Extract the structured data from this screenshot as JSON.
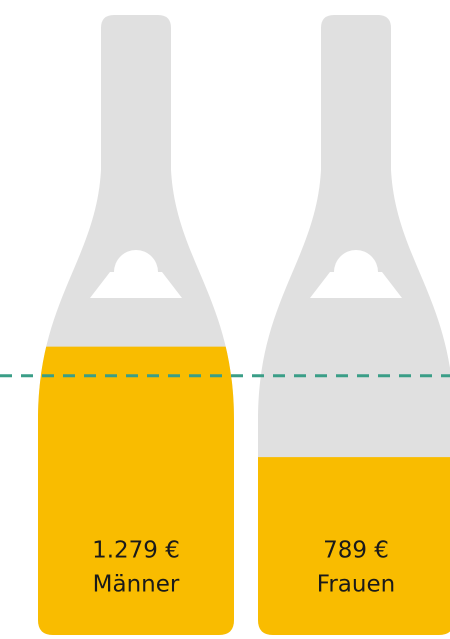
{
  "chart_data": {
    "type": "bottle",
    "categories": [
      "Männer",
      "Frauen"
    ],
    "values": [
      1279,
      789
    ],
    "value_labels": [
      "1.279 €",
      "789 €"
    ],
    "color": "#f9bc00",
    "bottle_color": "#e0e0e0",
    "reference_line": 1150,
    "reference_color": "#3a9e87",
    "ylim": [
      0,
      2750
    ]
  }
}
